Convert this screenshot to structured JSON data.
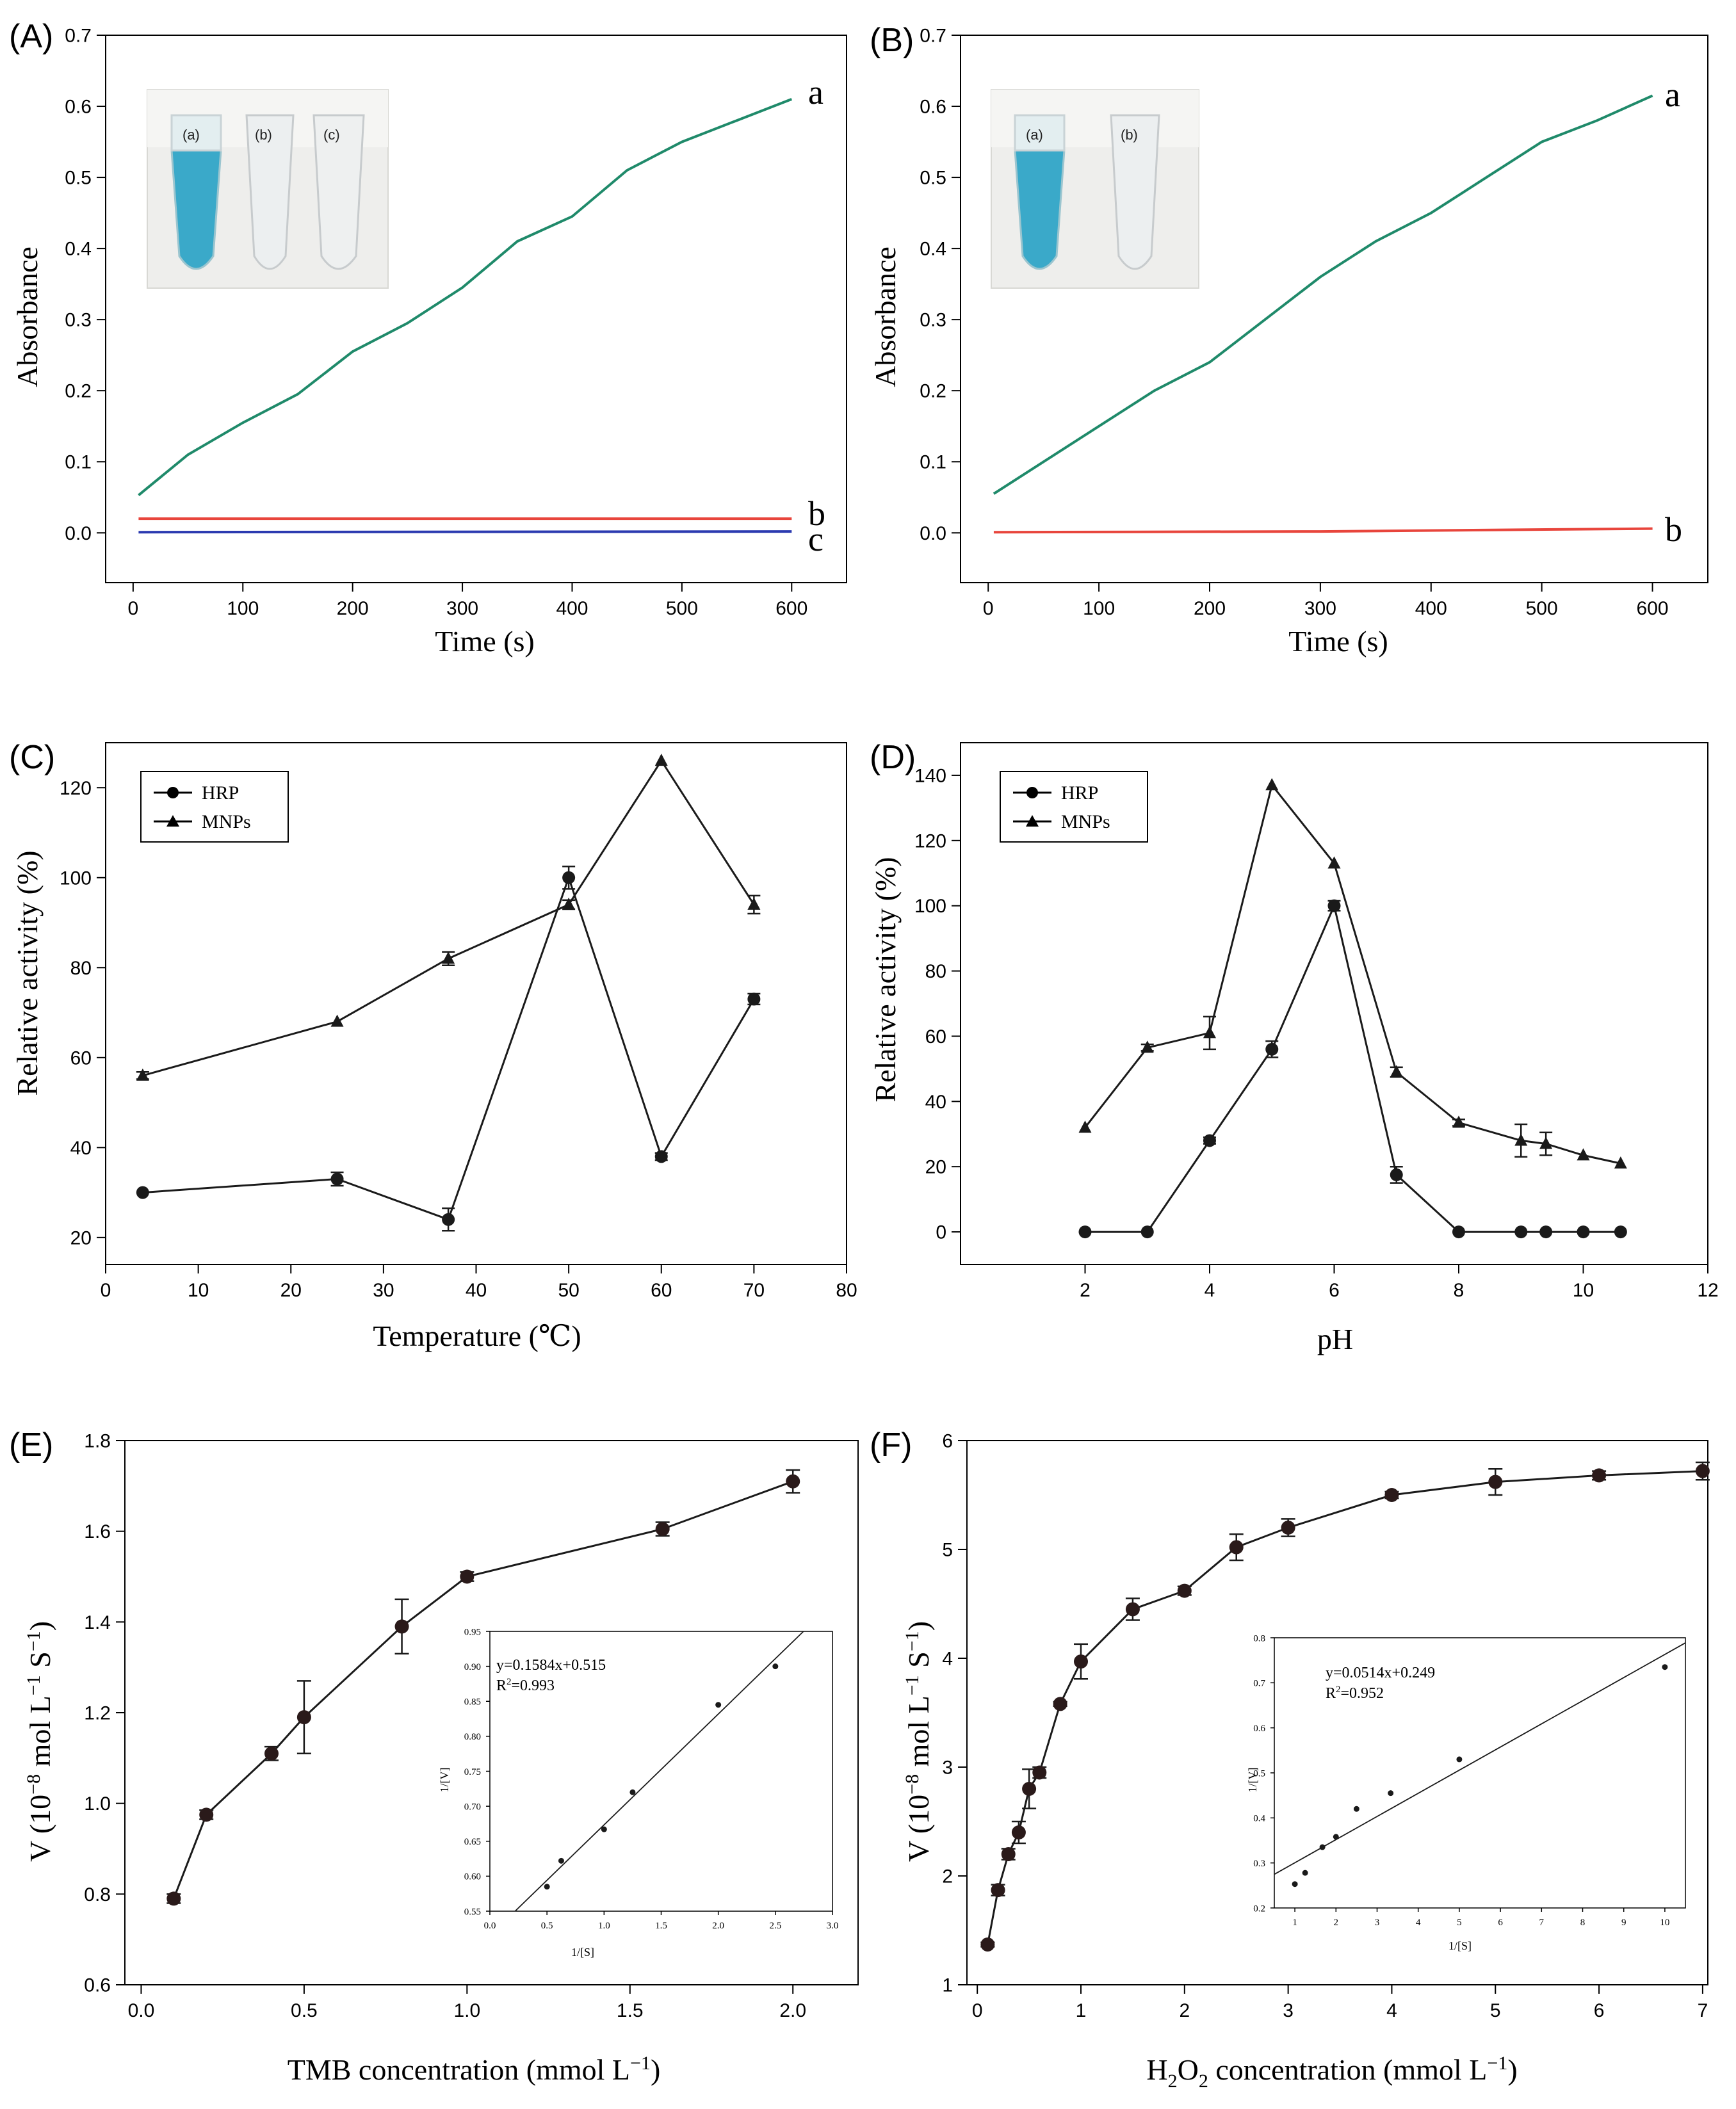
{
  "figure": {
    "panel_labels": [
      "(A)",
      "(B)",
      "(C)",
      "(D)",
      "(E)",
      "(F)"
    ]
  },
  "colors": {
    "green": "#1f8a6a",
    "red": "#e8453c",
    "blue": "#2b3ab0",
    "tube_blue": "#3aa9c9"
  },
  "chart_data": [
    {
      "panel": "(A)",
      "type": "line",
      "xlabel": "Time (s)",
      "ylabel": "Absorbance",
      "xlim": [
        -25,
        650
      ],
      "ylim": [
        -0.07,
        0.7
      ],
      "xticks": [
        0,
        100,
        200,
        300,
        400,
        500,
        600
      ],
      "yticks": [
        0,
        0.1,
        0.2,
        0.3,
        0.4,
        0.5,
        0.6,
        0.7
      ],
      "series": [
        {
          "name": "a",
          "color": "#1f8a6a",
          "x": [
            5,
            50,
            100,
            150,
            200,
            250,
            300,
            350,
            400,
            450,
            500,
            550,
            600
          ],
          "y": [
            0.053,
            0.11,
            0.155,
            0.195,
            0.255,
            0.295,
            0.345,
            0.41,
            0.445,
            0.51,
            0.55,
            0.58,
            0.61
          ]
        },
        {
          "name": "b",
          "color": "#e8453c",
          "x": [
            5,
            600
          ],
          "y": [
            0.02,
            0.02
          ]
        },
        {
          "name": "c",
          "color": "#2b3ab0",
          "x": [
            5,
            600
          ],
          "y": [
            0.001,
            0.002
          ]
        }
      ],
      "curve_labels": [
        "a",
        "b",
        "c"
      ],
      "inset_tube_labels": [
        "(a)",
        "(b)",
        "(c)"
      ]
    },
    {
      "panel": "(B)",
      "type": "line",
      "xlabel": "Time (s)",
      "ylabel": "Absorbance",
      "xlim": [
        -25,
        650
      ],
      "ylim": [
        -0.07,
        0.7
      ],
      "xticks": [
        0,
        100,
        200,
        300,
        400,
        500,
        600
      ],
      "yticks": [
        0,
        0.1,
        0.2,
        0.3,
        0.4,
        0.5,
        0.6,
        0.7
      ],
      "series": [
        {
          "name": "a",
          "color": "#1f8a6a",
          "x": [
            5,
            50,
            100,
            150,
            200,
            250,
            300,
            350,
            400,
            450,
            500,
            550,
            600
          ],
          "y": [
            0.055,
            0.1,
            0.15,
            0.2,
            0.24,
            0.3,
            0.36,
            0.41,
            0.45,
            0.5,
            0.55,
            0.58,
            0.615
          ]
        },
        {
          "name": "b",
          "color": "#e8453c",
          "x": [
            5,
            300,
            600
          ],
          "y": [
            0.001,
            0.002,
            0.006
          ]
        }
      ],
      "curve_labels": [
        "a",
        "b"
      ],
      "inset_tube_labels": [
        "(a)",
        "(b)"
      ]
    },
    {
      "panel": "(C)",
      "type": "line",
      "xlabel": "Temperature (℃)",
      "ylabel": "Relative activity (%)",
      "xlim": [
        0,
        80
      ],
      "ylim": [
        14,
        130
      ],
      "xticks": [
        0,
        10,
        20,
        30,
        40,
        50,
        60,
        70,
        80
      ],
      "yticks": [
        20,
        40,
        60,
        80,
        100,
        120
      ],
      "legend": [
        "HRP",
        "MNPs"
      ],
      "series": [
        {
          "name": "HRP",
          "marker": "circle",
          "x": [
            4,
            25,
            37,
            50,
            60,
            70
          ],
          "y": [
            30,
            33,
            24,
            100,
            38,
            73
          ],
          "err": [
            0.5,
            1.5,
            2.5,
            2.5,
            0.8,
            1.2
          ]
        },
        {
          "name": "MNPs",
          "marker": "triangle",
          "x": [
            4,
            25,
            37,
            50,
            60,
            70
          ],
          "y": [
            56,
            68,
            82,
            94,
            126,
            94
          ],
          "err": [
            0.8,
            0.5,
            1.5,
            1.0,
            0.5,
            2.0
          ]
        }
      ]
    },
    {
      "panel": "(D)",
      "type": "line",
      "xlabel": "pH",
      "ylabel": "Relative activity (%)",
      "xlim": [
        0,
        12
      ],
      "ylim": [
        -10,
        150
      ],
      "xticks": [
        2,
        4,
        6,
        8,
        10,
        12
      ],
      "yticks": [
        0,
        20,
        40,
        60,
        80,
        100,
        120,
        140
      ],
      "legend": [
        "HRP",
        "MNPs"
      ],
      "series": [
        {
          "name": "HRP",
          "marker": "circle",
          "x": [
            2,
            3,
            4,
            5,
            6,
            7,
            8,
            9,
            9.4,
            10,
            10.6
          ],
          "y": [
            0,
            0,
            28,
            56,
            100,
            17.5,
            0,
            0,
            0,
            0,
            0
          ],
          "err": [
            0,
            0,
            1.0,
            2.5,
            1.5,
            2.5,
            0,
            0,
            0,
            0,
            0
          ]
        },
        {
          "name": "MNPs",
          "marker": "triangle",
          "x": [
            2,
            3,
            4,
            5,
            6,
            7,
            8,
            9,
            9.4,
            10,
            10.6
          ],
          "y": [
            32,
            56.5,
            61,
            137,
            113,
            49,
            33.5,
            28,
            27,
            23.5,
            21
          ],
          "err": [
            0,
            1.0,
            5.0,
            0.5,
            0,
            1.5,
            1.0,
            5.0,
            3.5,
            0.5,
            0.5
          ]
        }
      ]
    },
    {
      "panel": "(E)",
      "type": "line",
      "xlabel": "TMB concentration (mmol L",
      "xlabel_sup": "−1",
      "xlabel_end": ")",
      "ylabel": "V (10",
      "ylabel_sup": "−8",
      "ylabel_mid": " mol L",
      "ylabel_sup2": "−1",
      "ylabel_mid2": " S",
      "ylabel_sup3": "−1",
      "ylabel_end": ")",
      "xlim": [
        -0.05,
        2.2
      ],
      "ylim": [
        0.6,
        1.8
      ],
      "xticks": [
        0.0,
        0.5,
        1.0,
        1.5,
        2.0
      ],
      "xtick_labels": [
        "0.0",
        "0.5",
        "1.0",
        "1.5",
        "2.0"
      ],
      "yticks": [
        0.6,
        0.8,
        1.0,
        1.2,
        1.4,
        1.6,
        1.8
      ],
      "ytick_labels": [
        "0.6",
        "0.8",
        "1.0",
        "1.2",
        "1.4",
        "1.6",
        "1.8"
      ],
      "series": [
        {
          "name": "V",
          "marker": "circle",
          "x": [
            0.1,
            0.2,
            0.4,
            0.5,
            0.8,
            1.0,
            1.6,
            2.0
          ],
          "y": [
            0.79,
            0.975,
            1.11,
            1.19,
            1.39,
            1.5,
            1.605,
            1.71
          ],
          "err": [
            0.01,
            0.01,
            0.015,
            0.08,
            0.06,
            0.01,
            0.015,
            0.025
          ]
        }
      ],
      "inset": {
        "type": "scatter",
        "equation": "y=0.1584x+0.515",
        "r2_prefix": "R",
        "r2_sup": "2",
        "r2_value": "=0.993",
        "xlabel": "1/[S]",
        "ylabel": "1/[V]",
        "xlim": [
          0,
          3.0
        ],
        "ylim": [
          0.55,
          0.95
        ],
        "xticks": [
          0.0,
          0.5,
          1.0,
          1.5,
          2.0,
          2.5,
          3.0
        ],
        "xtick_labels": [
          "0.0",
          "0.5",
          "1.0",
          "1.5",
          "2.0",
          "2.5",
          "3.0"
        ],
        "yticks": [
          0.55,
          0.6,
          0.65,
          0.7,
          0.75,
          0.8,
          0.85,
          0.9,
          0.95
        ],
        "ytick_labels": [
          "0.55",
          "0.60",
          "0.65",
          "0.70",
          "0.75",
          "0.80",
          "0.85",
          "0.90",
          "0.95"
        ],
        "x": [
          0.5,
          0.625,
          1.0,
          1.25,
          2.0,
          2.5
        ],
        "y": [
          0.585,
          0.622,
          0.667,
          0.72,
          0.845,
          0.9
        ],
        "fit": {
          "slope": 0.1584,
          "intercept": 0.515
        }
      }
    },
    {
      "panel": "(F)",
      "type": "line",
      "xlabel": "H",
      "xlabel_sub": "2",
      "xlabel_mid": "O",
      "xlabel_sub2": "2",
      "xlabel_end": " concentration (mmol L",
      "xlabel_sup": "−1",
      "xlabel_end2": ")",
      "ylabel": "V (10",
      "ylabel_sup": "−8",
      "ylabel_mid": " mol L",
      "ylabel_sup2": "−1",
      "ylabel_mid2": " S",
      "ylabel_sup3": "−1",
      "ylabel_end": ")",
      "xlim": [
        -0.1,
        7.05
      ],
      "ylim": [
        1,
        6
      ],
      "xticks": [
        0,
        1,
        2,
        3,
        4,
        5,
        6,
        7
      ],
      "xtick_labels": [
        "0",
        "1",
        "2",
        "3",
        "4",
        "5",
        "6",
        "7"
      ],
      "yticks": [
        1,
        2,
        3,
        4,
        5,
        6
      ],
      "ytick_labels": [
        "1",
        "2",
        "3",
        "4",
        "5",
        "6"
      ],
      "series": [
        {
          "name": "V",
          "marker": "circle",
          "x": [
            0.1,
            0.2,
            0.3,
            0.4,
            0.5,
            0.6,
            0.8,
            1.0,
            1.5,
            2.0,
            2.5,
            3.0,
            4.0,
            5.0,
            6.0,
            7.0
          ],
          "y": [
            1.37,
            1.87,
            2.2,
            2.4,
            2.8,
            2.95,
            3.58,
            3.97,
            4.45,
            4.62,
            5.02,
            5.2,
            5.5,
            5.62,
            5.68,
            5.72
          ],
          "err": [
            0.02,
            0.05,
            0.05,
            0.1,
            0.18,
            0.05,
            0.02,
            0.16,
            0.1,
            0.04,
            0.12,
            0.08,
            0.03,
            0.12,
            0.04,
            0.08
          ]
        }
      ],
      "inset": {
        "type": "scatter",
        "equation": "y=0.0514x+0.249",
        "r2_prefix": "R",
        "r2_sup": "2",
        "r2_value": "=0.952",
        "xlabel": "1/[S]",
        "ylabel": "1/[V]",
        "xlim": [
          0.5,
          10.5
        ],
        "ylim": [
          0.2,
          0.8
        ],
        "xticks": [
          1,
          2,
          3,
          4,
          5,
          6,
          7,
          8,
          9,
          10
        ],
        "xtick_labels": [
          "1",
          "2",
          "3",
          "4",
          "5",
          "6",
          "7",
          "8",
          "9",
          "10"
        ],
        "yticks": [
          0.2,
          0.3,
          0.4,
          0.5,
          0.6,
          0.7,
          0.8
        ],
        "ytick_labels": [
          "0.2",
          "0.3",
          "0.4",
          "0.5",
          "0.6",
          "0.7",
          "0.8"
        ],
        "x": [
          1,
          1.25,
          1.67,
          2,
          2.5,
          3.33,
          5,
          10
        ],
        "y": [
          0.253,
          0.278,
          0.335,
          0.358,
          0.42,
          0.455,
          0.53,
          0.735
        ],
        "fit": {
          "slope": 0.0514,
          "intercept": 0.249
        }
      }
    }
  ]
}
